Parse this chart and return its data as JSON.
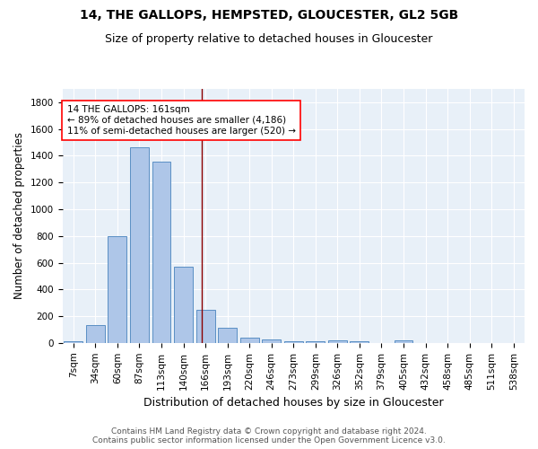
{
  "title1": "14, THE GALLOPS, HEMPSTED, GLOUCESTER, GL2 5GB",
  "title2": "Size of property relative to detached houses in Gloucester",
  "xlabel": "Distribution of detached houses by size in Gloucester",
  "ylabel": "Number of detached properties",
  "categories": [
    "7sqm",
    "34sqm",
    "60sqm",
    "87sqm",
    "113sqm",
    "140sqm",
    "166sqm",
    "193sqm",
    "220sqm",
    "246sqm",
    "273sqm",
    "299sqm",
    "326sqm",
    "352sqm",
    "379sqm",
    "405sqm",
    "432sqm",
    "458sqm",
    "485sqm",
    "511sqm",
    "538sqm"
  ],
  "values": [
    10,
    135,
    795,
    1460,
    1355,
    570,
    245,
    110,
    40,
    25,
    15,
    10,
    17,
    10,
    0,
    18,
    0,
    0,
    0,
    0,
    0
  ],
  "bar_color": "#aec6e8",
  "bar_edge_color": "#5a8fc4",
  "background_color": "#e8f0f8",
  "vline_x": 5.82,
  "vline_color": "#8b0000",
  "annotation_text": "14 THE GALLOPS: 161sqm\n← 89% of detached houses are smaller (4,186)\n11% of semi-detached houses are larger (520) →",
  "annotation_box_color": "white",
  "annotation_box_edge": "red",
  "footer1": "Contains HM Land Registry data © Crown copyright and database right 2024.",
  "footer2": "Contains public sector information licensed under the Open Government Licence v3.0.",
  "ylim": [
    0,
    1900
  ],
  "yticks": [
    0,
    200,
    400,
    600,
    800,
    1000,
    1200,
    1400,
    1600,
    1800
  ],
  "title1_fontsize": 10,
  "title2_fontsize": 9,
  "xlabel_fontsize": 9,
  "ylabel_fontsize": 8.5,
  "tick_fontsize": 7.5,
  "footer_fontsize": 6.5,
  "annotation_fontsize": 7.5
}
